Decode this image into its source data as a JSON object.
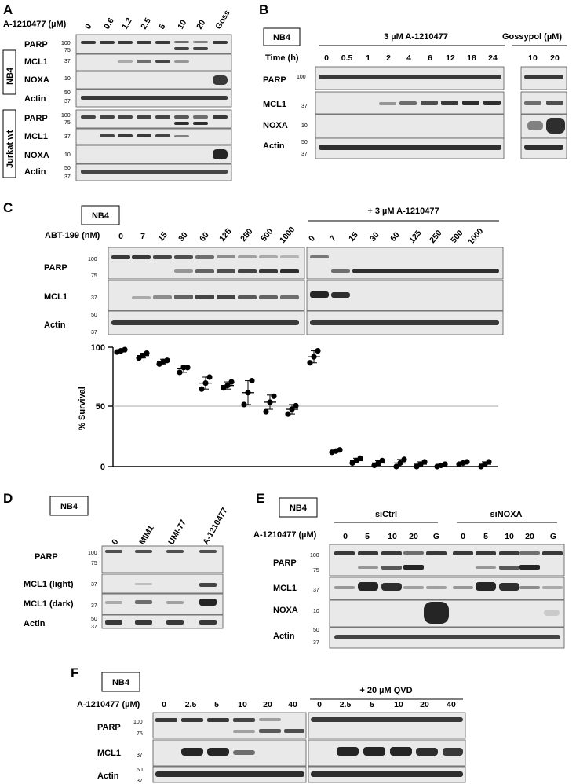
{
  "panelA": {
    "letter": "A",
    "condition_label": "A-1210477 (µM)",
    "lanes": [
      "0",
      "0.6",
      "1.2",
      "2.5",
      "5",
      "10",
      "20",
      "Goss"
    ],
    "group1": "NB4",
    "group2": "Jurkat wt",
    "rows_nb4": [
      "PARP",
      "MCL1",
      "NOXA",
      "Actin"
    ],
    "rows_jurkat": [
      "PARP",
      "MCL1",
      "NOXA",
      "Actin"
    ],
    "mw": {
      "parp_hi": "100",
      "parp_lo": "75",
      "mcl1": "37",
      "noxa": "10",
      "actin_hi": "50",
      "actin_lo": "37"
    }
  },
  "panelB": {
    "letter": "B",
    "cell_tag": "NB4",
    "treatment_a": "3 µM A-1210477",
    "treatment_b": "Gossypol (µM)",
    "time_label": "Time (h)",
    "lanes_a": [
      "0",
      "0.5",
      "1",
      "2",
      "4",
      "6",
      "12",
      "18",
      "24"
    ],
    "lanes_b": [
      "10",
      "20"
    ],
    "rows": [
      "PARP",
      "MCL1",
      "NOXA",
      "Actin"
    ],
    "mw": {
      "parp": "100",
      "mcl1": "37",
      "noxa": "10",
      "actin_hi": "50",
      "actin_lo": "37"
    }
  },
  "panelC": {
    "letter": "C",
    "cell_tag": "NB4",
    "drug_label": "ABT-199 (nM)",
    "combo_label": "+ 3 µM A-1210477",
    "lanes": [
      "0",
      "7",
      "15",
      "30",
      "60",
      "125",
      "250",
      "500",
      "1000"
    ],
    "lanes_combo": [
      "0",
      "7",
      "15",
      "30",
      "60",
      "125",
      "250",
      "500",
      "1000"
    ],
    "rows": [
      "PARP",
      "MCL1",
      "Actin"
    ],
    "mw": {
      "parp_hi": "100",
      "parp_lo": "75",
      "mcl1": "37",
      "actin_hi": "50",
      "actin_lo": "37"
    }
  },
  "chart_data": {
    "type": "scatter",
    "ylabel": "% Survival",
    "ylim": [
      0,
      100
    ],
    "yticks": [
      "0",
      "50",
      "100"
    ],
    "reference_line": 50,
    "categories": [
      "0",
      "7",
      "15",
      "30",
      "60",
      "125",
      "250",
      "500",
      "1000",
      "0",
      "7",
      "15",
      "30",
      "60",
      "125",
      "250",
      "500",
      "1000"
    ],
    "means": [
      97,
      93,
      88,
      82,
      70,
      68,
      62,
      54,
      48,
      92,
      13,
      5,
      3,
      3,
      2,
      1,
      3,
      2
    ],
    "sd": [
      1,
      2,
      2,
      3,
      5,
      3,
      10,
      6,
      4,
      5,
      1,
      2,
      2,
      3,
      2,
      1,
      1,
      2
    ],
    "points": [
      [
        96,
        97,
        98
      ],
      [
        91,
        93,
        95
      ],
      [
        86,
        88,
        89
      ],
      [
        79,
        83,
        83
      ],
      [
        65,
        70,
        75
      ],
      [
        66,
        68,
        71
      ],
      [
        52,
        62,
        72
      ],
      [
        46,
        54,
        59
      ],
      [
        44,
        48,
        51
      ],
      [
        87,
        92,
        97
      ],
      [
        12,
        13,
        14
      ],
      [
        3,
        5,
        7
      ],
      [
        1,
        3,
        5
      ],
      [
        0,
        3,
        6
      ],
      [
        0,
        2,
        4
      ],
      [
        0,
        1,
        2
      ],
      [
        2,
        3,
        4
      ],
      [
        0,
        2,
        4
      ]
    ]
  },
  "panelD": {
    "letter": "D",
    "cell_tag": "NB4",
    "lanes": [
      "0",
      "MIM1",
      "UMI-77",
      "A-1210477"
    ],
    "rows": [
      "PARP",
      "MCL1 (light)",
      "MCL1 (dark)",
      "Actin"
    ],
    "mw": {
      "parp_hi": "100",
      "parp_lo": "75",
      "mcl1_light": "37",
      "mcl1_dark": "37",
      "actin_hi": "50",
      "actin_lo": "37"
    }
  },
  "panelE": {
    "letter": "E",
    "cell_tag": "NB4",
    "condition_label": "A-1210477 (µM)",
    "group1": "siCtrl",
    "group2": "siNOXA",
    "lanes": [
      "0",
      "5",
      "10",
      "20",
      "G",
      "0",
      "5",
      "10",
      "20",
      "G"
    ],
    "rows": [
      "PARP",
      "MCL1",
      "NOXA",
      "Actin"
    ],
    "mw": {
      "parp_hi": "100",
      "parp_lo": "75",
      "mcl1": "37",
      "noxa": "10",
      "actin_hi": "50",
      "actin_lo": "37"
    }
  },
  "panelF": {
    "letter": "F",
    "cell_tag": "NB4",
    "condition_label": "A-1210477 (µM)",
    "combo_label": "+ 20 µM QVD",
    "lanes": [
      "0",
      "2.5",
      "5",
      "10",
      "20",
      "40"
    ],
    "lanes_combo": [
      "0",
      "2.5",
      "5",
      "10",
      "20",
      "40"
    ],
    "rows": [
      "PARP",
      "MCL1",
      "Actin"
    ],
    "mw": {
      "parp_hi": "100",
      "parp_lo": "75",
      "mcl1": "37",
      "actin_hi": "50",
      "actin_lo": "37"
    }
  }
}
